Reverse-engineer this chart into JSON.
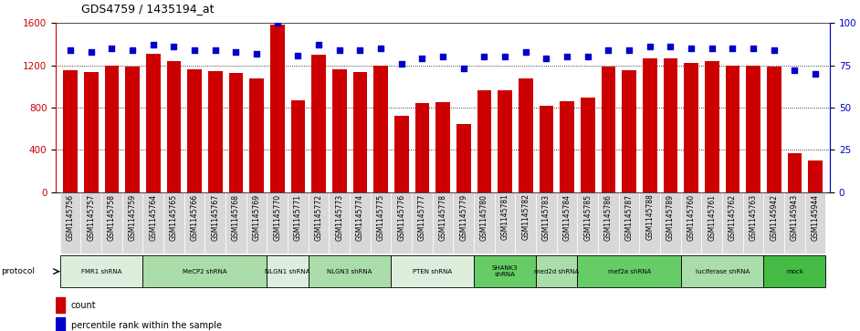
{
  "title": "GDS4759 / 1435194_at",
  "samples": [
    "GSM1145756",
    "GSM1145757",
    "GSM1145758",
    "GSM1145759",
    "GSM1145764",
    "GSM1145765",
    "GSM1145766",
    "GSM1145767",
    "GSM1145768",
    "GSM1145769",
    "GSM1145770",
    "GSM1145771",
    "GSM1145772",
    "GSM1145773",
    "GSM1145774",
    "GSM1145775",
    "GSM1145776",
    "GSM1145777",
    "GSM1145778",
    "GSM1145779",
    "GSM1145780",
    "GSM1145781",
    "GSM1145782",
    "GSM1145783",
    "GSM1145784",
    "GSM1145785",
    "GSM1145786",
    "GSM1145787",
    "GSM1145788",
    "GSM1145789",
    "GSM1145760",
    "GSM1145761",
    "GSM1145762",
    "GSM1145763",
    "GSM1145942",
    "GSM1145943",
    "GSM1145944"
  ],
  "counts": [
    1155,
    1140,
    1200,
    1185,
    1310,
    1240,
    1160,
    1148,
    1125,
    1075,
    1590,
    870,
    1300,
    1160,
    1135,
    1200,
    720,
    840,
    855,
    645,
    960,
    960,
    1080,
    820,
    860,
    895,
    1190,
    1155,
    1270,
    1270,
    1220,
    1240,
    1200,
    1200,
    1190,
    365,
    300
  ],
  "percentiles": [
    84,
    83,
    85,
    84,
    87,
    86,
    84,
    84,
    83,
    82,
    100,
    81,
    87,
    84,
    84,
    85,
    76,
    79,
    80,
    73,
    80,
    80,
    83,
    79,
    80,
    80,
    84,
    84,
    86,
    86,
    85,
    85,
    85,
    85,
    84,
    72,
    70
  ],
  "protocols": [
    {
      "label": "FMR1 shRNA",
      "start": 0,
      "end": 4,
      "color": "#ddeedd"
    },
    {
      "label": "MeCP2 shRNA",
      "start": 4,
      "end": 10,
      "color": "#aaddaa"
    },
    {
      "label": "NLGN1 shRNA",
      "start": 10,
      "end": 12,
      "color": "#ddeedd"
    },
    {
      "label": "NLGN3 shRNA",
      "start": 12,
      "end": 16,
      "color": "#aaddaa"
    },
    {
      "label": "PTEN shRNA",
      "start": 16,
      "end": 20,
      "color": "#ddeedd"
    },
    {
      "label": "SHANK3\nshRNA",
      "start": 20,
      "end": 23,
      "color": "#66cc66"
    },
    {
      "label": "med2d shRNA",
      "start": 23,
      "end": 25,
      "color": "#aaddaa"
    },
    {
      "label": "mef2a shRNA",
      "start": 25,
      "end": 30,
      "color": "#66cc66"
    },
    {
      "label": "luciferase shRNA",
      "start": 30,
      "end": 34,
      "color": "#aaddaa"
    },
    {
      "label": "mock",
      "start": 34,
      "end": 37,
      "color": "#44bb44"
    }
  ],
  "bar_color": "#cc0000",
  "dot_color": "#0000cc",
  "ylim_left": [
    0,
    1600
  ],
  "ylim_right": [
    0,
    100
  ],
  "yticks_left": [
    0,
    400,
    800,
    1200,
    1600
  ],
  "yticks_right": [
    0,
    25,
    50,
    75,
    100
  ],
  "background_color": "#ffffff",
  "title_fontsize": 9,
  "tick_label_bg": "#d8d8d8"
}
